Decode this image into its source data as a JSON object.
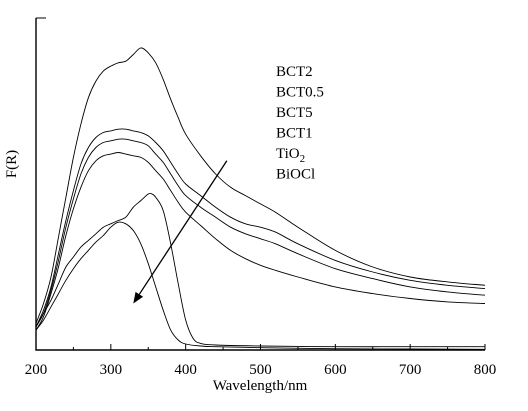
{
  "chart_data": {
    "type": "line",
    "xlabel": "Wavelength/nm",
    "ylabel": "F(R)",
    "xlim": [
      200,
      800
    ],
    "ylim": [
      0,
      1
    ],
    "x_ticks": [
      200,
      300,
      400,
      500,
      600,
      700,
      800
    ],
    "y_ticks_labeled": false,
    "grid": false,
    "legend_placement": "top-right",
    "arrow": {
      "from": [
        455,
        0.57
      ],
      "to": [
        330,
        0.14
      ]
    },
    "series": [
      {
        "name": "BCT2",
        "x": [
          200,
          210,
          220,
          230,
          240,
          250,
          260,
          270,
          280,
          290,
          300,
          310,
          320,
          330,
          340,
          350,
          360,
          370,
          380,
          390,
          400,
          420,
          440,
          460,
          480,
          500,
          520,
          550,
          600,
          650,
          700,
          750,
          800
        ],
        "y": [
          0.08,
          0.14,
          0.22,
          0.34,
          0.46,
          0.58,
          0.68,
          0.76,
          0.81,
          0.84,
          0.855,
          0.865,
          0.87,
          0.89,
          0.91,
          0.895,
          0.865,
          0.815,
          0.755,
          0.7,
          0.65,
          0.585,
          0.53,
          0.49,
          0.465,
          0.44,
          0.415,
          0.37,
          0.3,
          0.25,
          0.22,
          0.205,
          0.195
        ]
      },
      {
        "name": "BCT0.5",
        "x": [
          200,
          210,
          220,
          230,
          240,
          250,
          260,
          270,
          280,
          290,
          300,
          310,
          320,
          330,
          340,
          350,
          360,
          370,
          380,
          390,
          400,
          420,
          440,
          460,
          480,
          500,
          520,
          550,
          600,
          650,
          700,
          750,
          800
        ],
        "y": [
          0.07,
          0.12,
          0.19,
          0.29,
          0.39,
          0.48,
          0.56,
          0.61,
          0.64,
          0.655,
          0.66,
          0.665,
          0.665,
          0.66,
          0.655,
          0.645,
          0.625,
          0.6,
          0.565,
          0.53,
          0.5,
          0.465,
          0.43,
          0.4,
          0.38,
          0.37,
          0.355,
          0.32,
          0.27,
          0.235,
          0.21,
          0.195,
          0.185
        ]
      },
      {
        "name": "BCT5",
        "x": [
          200,
          210,
          220,
          230,
          240,
          250,
          260,
          270,
          280,
          290,
          300,
          310,
          320,
          330,
          340,
          350,
          360,
          370,
          380,
          390,
          400,
          420,
          440,
          460,
          480,
          500,
          520,
          550,
          600,
          650,
          700,
          750,
          800
        ],
        "y": [
          0.07,
          0.11,
          0.18,
          0.27,
          0.37,
          0.455,
          0.53,
          0.58,
          0.61,
          0.625,
          0.63,
          0.635,
          0.635,
          0.63,
          0.625,
          0.615,
          0.59,
          0.565,
          0.53,
          0.495,
          0.465,
          0.43,
          0.4,
          0.37,
          0.35,
          0.335,
          0.32,
          0.29,
          0.245,
          0.215,
          0.19,
          0.175,
          0.165
        ]
      },
      {
        "name": "BCT1",
        "x": [
          200,
          210,
          220,
          230,
          240,
          250,
          260,
          270,
          280,
          290,
          300,
          310,
          320,
          330,
          340,
          350,
          360,
          370,
          380,
          390,
          400,
          420,
          440,
          460,
          480,
          500,
          520,
          550,
          600,
          650,
          700,
          750,
          800
        ],
        "y": [
          0.06,
          0.1,
          0.17,
          0.25,
          0.345,
          0.425,
          0.49,
          0.54,
          0.57,
          0.585,
          0.59,
          0.595,
          0.59,
          0.585,
          0.58,
          0.565,
          0.54,
          0.515,
          0.48,
          0.445,
          0.415,
          0.375,
          0.335,
          0.3,
          0.275,
          0.255,
          0.24,
          0.22,
          0.19,
          0.17,
          0.155,
          0.145,
          0.14
        ]
      },
      {
        "name": "TiO2",
        "x": [
          200,
          210,
          220,
          230,
          240,
          250,
          260,
          270,
          280,
          290,
          300,
          310,
          320,
          330,
          340,
          350,
          355,
          360,
          370,
          380,
          390,
          400,
          410,
          420,
          440,
          500,
          600,
          700,
          800
        ],
        "y": [
          0.07,
          0.11,
          0.15,
          0.2,
          0.25,
          0.28,
          0.31,
          0.33,
          0.35,
          0.37,
          0.38,
          0.39,
          0.4,
          0.43,
          0.45,
          0.47,
          0.47,
          0.46,
          0.42,
          0.32,
          0.2,
          0.09,
          0.035,
          0.02,
          0.015,
          0.012,
          0.01,
          0.01,
          0.01
        ]
      },
      {
        "name": "BiOCl",
        "x": [
          200,
          210,
          220,
          230,
          240,
          250,
          260,
          270,
          280,
          290,
          300,
          310,
          320,
          330,
          340,
          350,
          360,
          370,
          380,
          390,
          400,
          420,
          440,
          500,
          600,
          700,
          800
        ],
        "y": [
          0.06,
          0.09,
          0.13,
          0.17,
          0.21,
          0.245,
          0.275,
          0.3,
          0.325,
          0.345,
          0.37,
          0.385,
          0.38,
          0.36,
          0.32,
          0.26,
          0.19,
          0.12,
          0.06,
          0.03,
          0.018,
          0.012,
          0.01,
          0.007,
          0.004,
          0.003,
          0.002
        ]
      }
    ],
    "legend_entries": [
      {
        "text": "BCT2",
        "sub": ""
      },
      {
        "text": "BCT0.5",
        "sub": ""
      },
      {
        "text": "BCT5",
        "sub": ""
      },
      {
        "text": "BCT1",
        "sub": ""
      },
      {
        "text": "TiO",
        "sub": "2"
      },
      {
        "text": "BiOCl",
        "sub": ""
      }
    ]
  }
}
